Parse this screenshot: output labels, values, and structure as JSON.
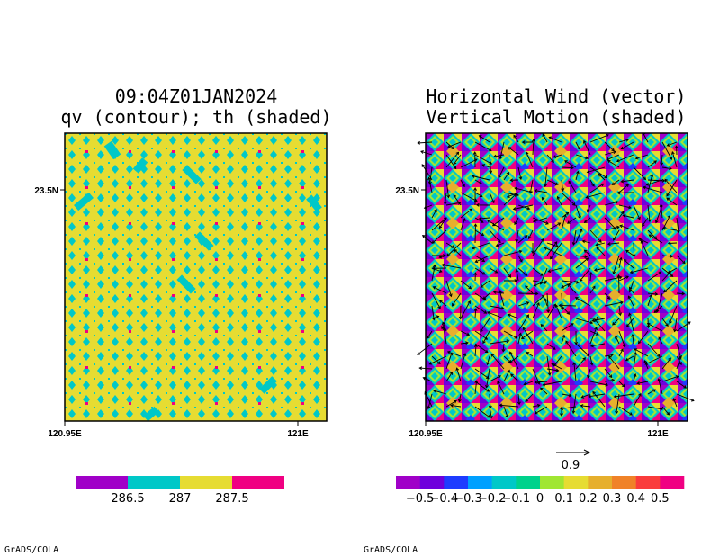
{
  "left_panel": {
    "title_line1": "09:04Z01JAN2024",
    "title_line2": "qv (contour); th (shaded)",
    "ytick": "23.5N",
    "xtick_left": "120.95E",
    "xtick_right": "121E",
    "credit": "GrADS/COLA"
  },
  "right_panel": {
    "title_line1": "Horizontal Wind (vector)",
    "title_line2": "Vertical Motion (shaded)",
    "ytick": "23.5N",
    "xtick_left": "120.95E",
    "xtick_right": "121E",
    "vector_ref_label": "0.9",
    "credit": "GrADS/COLA"
  },
  "chart_data": [
    {
      "type": "heatmap",
      "title": "09:04Z01JAN2024",
      "subtitle": "qv (contour); th (shaded)",
      "x_ticks": [
        "120.95E",
        "121E"
      ],
      "y_ticks": [
        "23.5N"
      ],
      "colorbar": {
        "labels": [
          "286.5",
          "287",
          "287.5"
        ],
        "colors": [
          "#a000c8",
          "#00c8c8",
          "#e6dc32",
          "#f00082"
        ]
      },
      "dominant_value_color": "#e6dc32",
      "secondary_value_color": "#00c8c8",
      "accent_value_color": "#f00082"
    },
    {
      "type": "heatmap",
      "title": "Horizontal Wind (vector)",
      "subtitle": "Vertical Motion (shaded)",
      "x_ticks": [
        "120.95E",
        "121E"
      ],
      "y_ticks": [
        "23.5N"
      ],
      "colorbar": {
        "labels": [
          "−0.5",
          "−0.4",
          "−0.3",
          "−0.2",
          "−0.1",
          "0",
          "0.1",
          "0.2",
          "0.3",
          "0.4",
          "0.5"
        ],
        "colors": [
          "#a000c8",
          "#6e00dc",
          "#1e3cff",
          "#00a0ff",
          "#00c8c8",
          "#00d28c",
          "#a0e632",
          "#e6dc32",
          "#e6af2d",
          "#f08228",
          "#fa3c3c",
          "#f00082"
        ]
      },
      "vector_reference": "0.9"
    }
  ]
}
